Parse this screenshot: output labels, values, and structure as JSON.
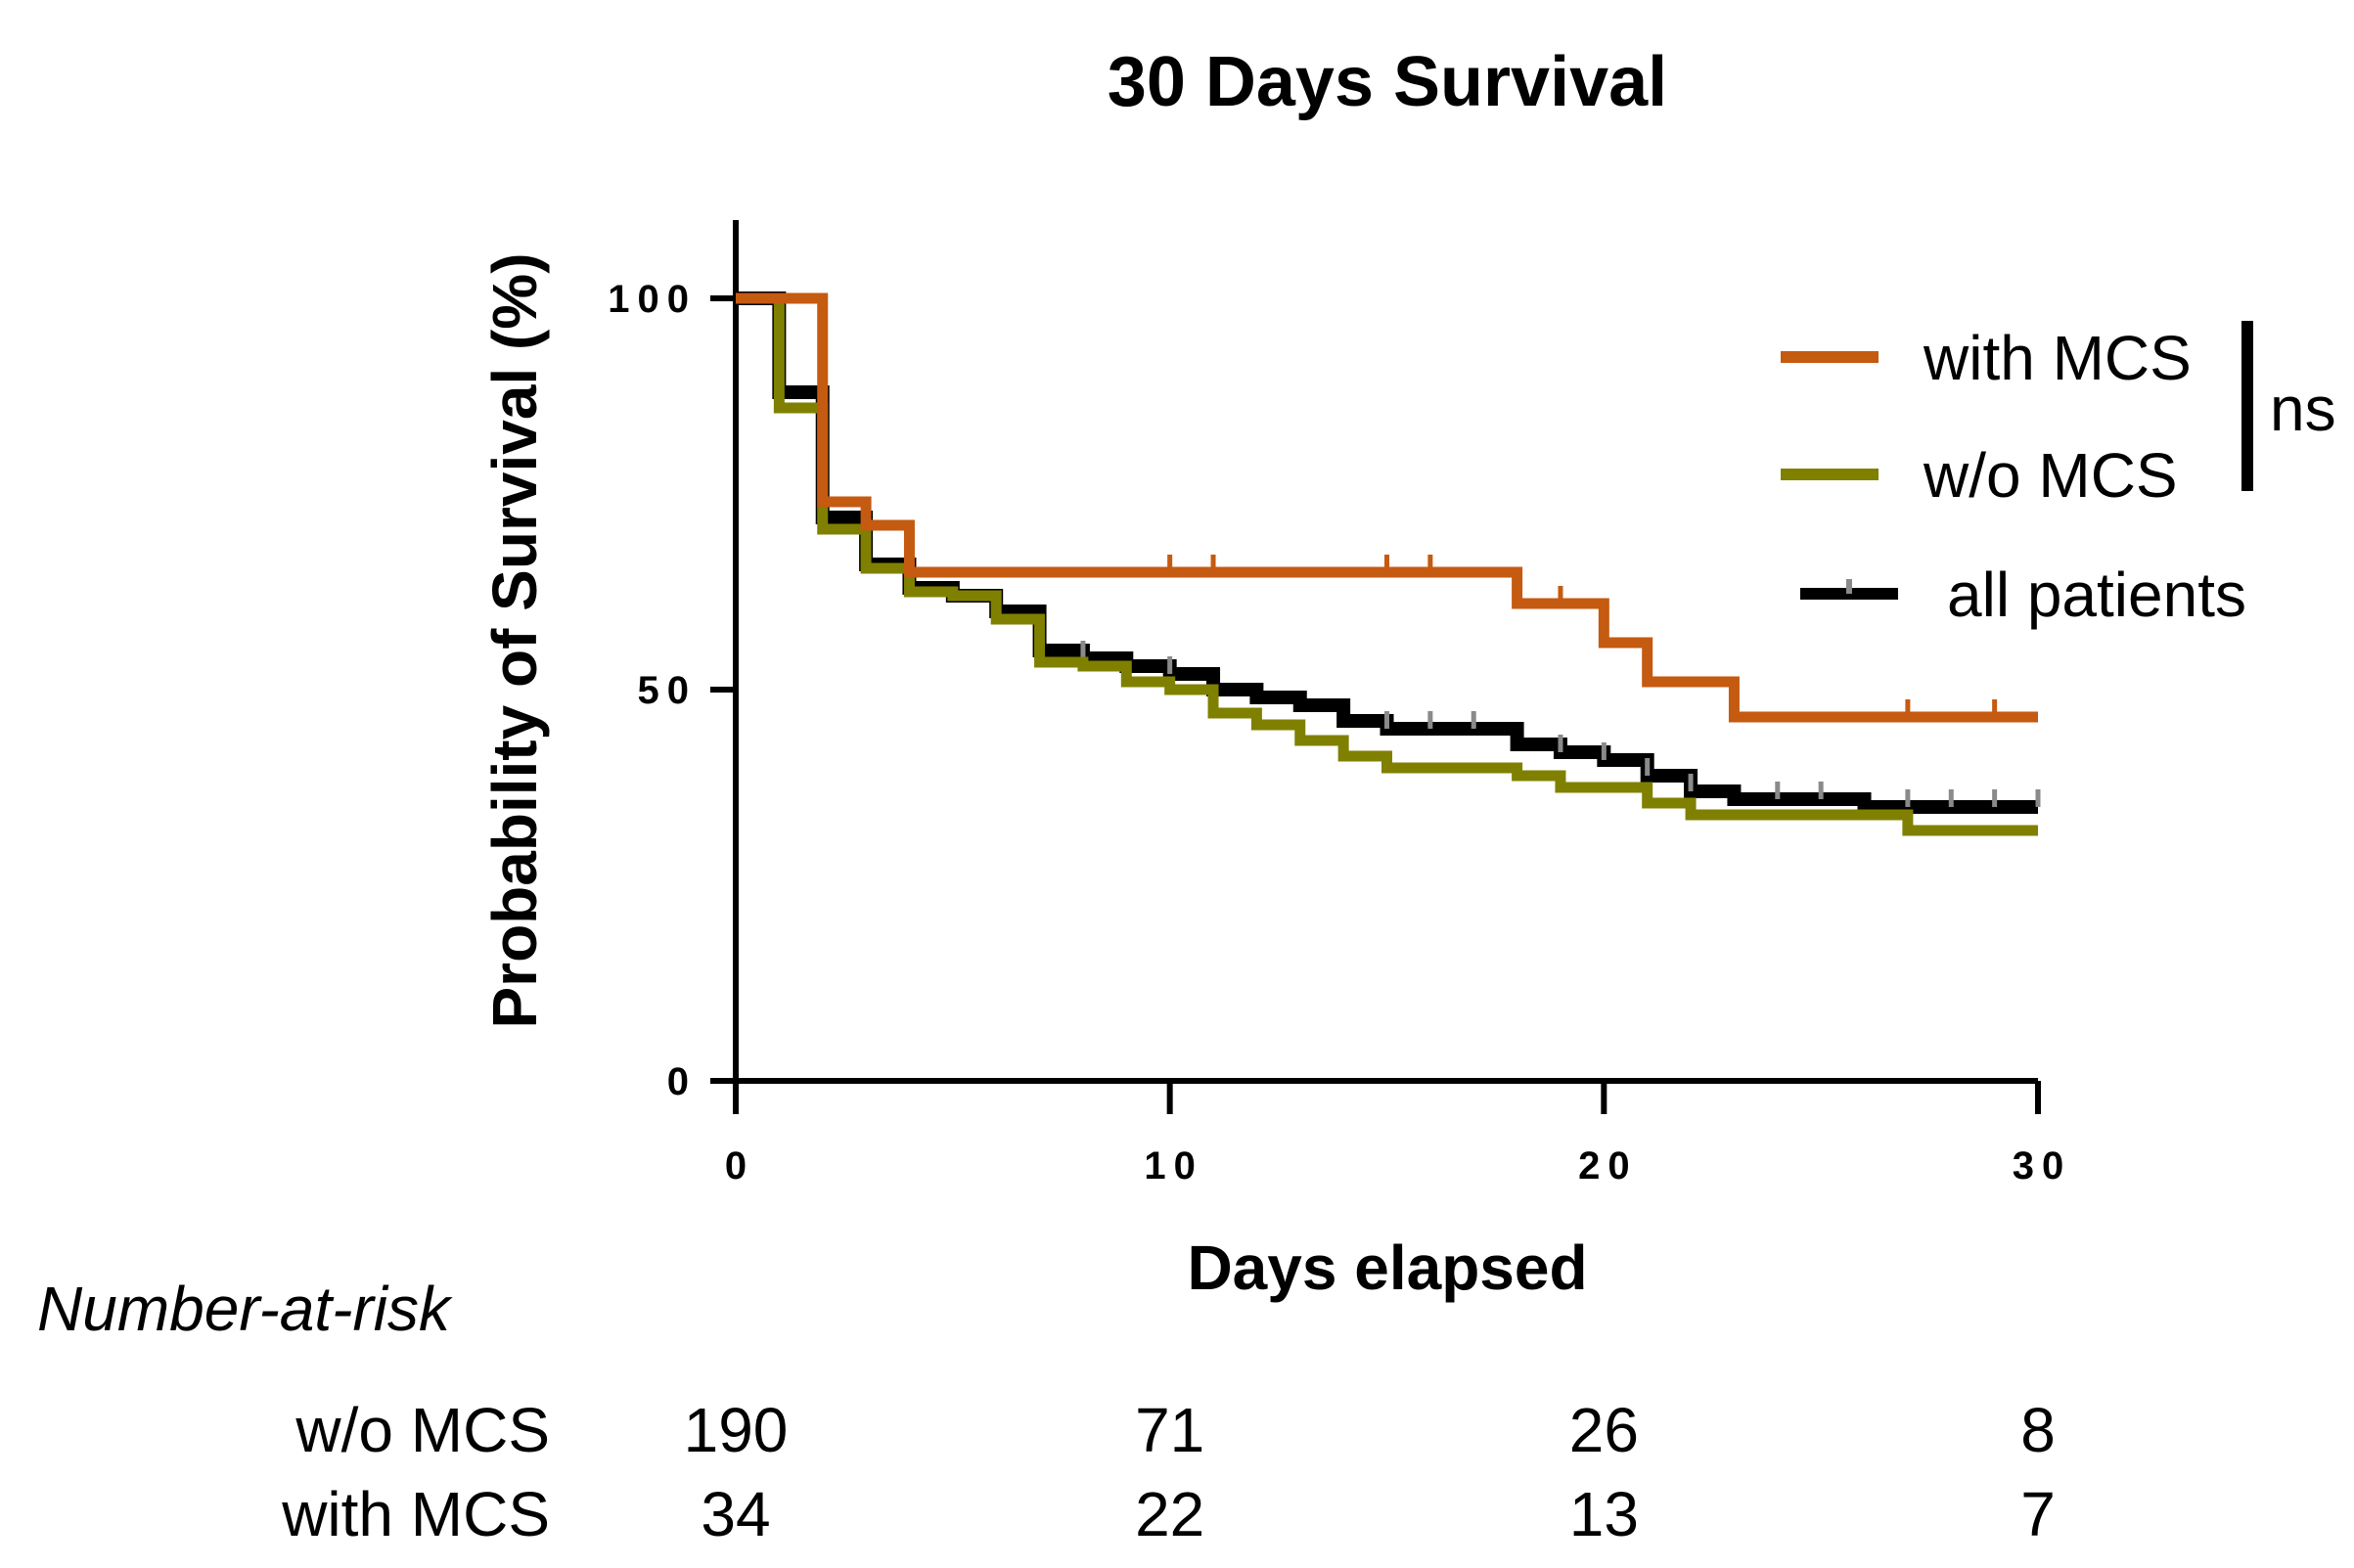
{
  "chart_data": {
    "type": "line",
    "subtype": "kaplan-meier step",
    "title": "30 Days Survival",
    "xlabel": "Days elapsed",
    "ylabel": "Probability of Survival (%)",
    "xlim": [
      0,
      30
    ],
    "ylim": [
      0,
      110
    ],
    "xticks": [
      0,
      10,
      20,
      30
    ],
    "xtick_labels": [
      "0",
      "10",
      "20",
      "30"
    ],
    "yticks": [
      0,
      50,
      100
    ],
    "ytick_labels": [
      "0",
      "50",
      "100"
    ],
    "grid": false,
    "legend_position": "top-right",
    "significance_label": "ns",
    "series": [
      {
        "name": "all patients",
        "color": "#000000",
        "censor_color": "#8a8a8a",
        "x": [
          0,
          1,
          2,
          3,
          4,
          5,
          6,
          7,
          8,
          9,
          10,
          11,
          12,
          13,
          14,
          15,
          16,
          17,
          18,
          19,
          20,
          21,
          22,
          23,
          24,
          25,
          26,
          27,
          30
        ],
        "y": [
          100,
          88,
          72,
          66,
          63,
          62,
          60,
          55,
          54,
          53,
          52,
          50,
          49,
          48,
          46,
          45,
          45,
          45,
          43,
          42,
          41,
          39,
          37,
          36,
          36,
          36,
          35,
          35,
          35
        ],
        "censored_x": [
          8,
          10,
          15,
          16,
          17,
          19,
          20,
          21,
          22,
          24,
          25,
          27,
          28,
          29,
          30
        ]
      },
      {
        "name": "with MCS",
        "color": "#c55a11",
        "x": [
          0,
          2,
          3,
          4,
          18,
          20,
          21,
          23,
          30
        ],
        "y": [
          100,
          74,
          71,
          65,
          61,
          56,
          51,
          46.5,
          46.5
        ],
        "censored_x": [
          10,
          11,
          15,
          16,
          19,
          27,
          29
        ]
      },
      {
        "name": "w/o MCS",
        "color": "#808000",
        "x": [
          0,
          1,
          2,
          3,
          4,
          5,
          6,
          7,
          8,
          9,
          10,
          11,
          12,
          13,
          14,
          15,
          16,
          17,
          18,
          19,
          20,
          21,
          22,
          23,
          24,
          25,
          26,
          27,
          30
        ],
        "y": [
          100,
          86,
          70.5,
          65.5,
          62.5,
          62,
          59,
          53.5,
          53,
          51,
          50,
          47,
          45.5,
          43.5,
          41.5,
          40,
          40,
          40,
          39,
          37.5,
          37.5,
          35.5,
          34,
          34,
          34,
          34,
          34,
          32,
          32
        ],
        "censored_x": []
      }
    ],
    "number_at_risk": {
      "heading": "Number-at-risk",
      "times": [
        0,
        10,
        20,
        30
      ],
      "rows": [
        {
          "label": "w/o MCS",
          "values": [
            "190",
            "71",
            "26",
            "8"
          ]
        },
        {
          "label": "with MCS",
          "values": [
            "34",
            "22",
            "13",
            "7"
          ]
        }
      ]
    }
  }
}
